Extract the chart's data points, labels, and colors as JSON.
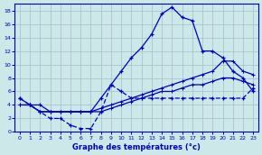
{
  "xlabel": "Graphe des températures (°c)",
  "background_color": "#cce8e8",
  "grid_color": "#aabbcc",
  "line_color": "#0000bb",
  "xlim": [
    -0.5,
    23.5
  ],
  "ylim": [
    0,
    19
  ],
  "xticks": [
    0,
    1,
    2,
    3,
    4,
    5,
    6,
    7,
    8,
    9,
    10,
    11,
    12,
    13,
    14,
    15,
    16,
    17,
    18,
    19,
    20,
    21,
    22,
    23
  ],
  "yticks": [
    0,
    2,
    4,
    6,
    8,
    10,
    12,
    14,
    16,
    18
  ],
  "line1_x": [
    0,
    1,
    2,
    3,
    4,
    5,
    6,
    7,
    8,
    9,
    10,
    11,
    12,
    13,
    14,
    15,
    16,
    17,
    18,
    19,
    20,
    21,
    22,
    23
  ],
  "line1_y": [
    5,
    4,
    4,
    3,
    3,
    3,
    3,
    3,
    5,
    7,
    9,
    11,
    12.5,
    14.5,
    17.5,
    18.5,
    17,
    16.5,
    12,
    12,
    11,
    9,
    8,
    6
  ],
  "line2_x": [
    0,
    1,
    2,
    3,
    4,
    5,
    6,
    7,
    8,
    9,
    10,
    11,
    12,
    13,
    14,
    15,
    16,
    17,
    18,
    19,
    20,
    21,
    22,
    23
  ],
  "line2_y": [
    5,
    4,
    3,
    2,
    2,
    1,
    0.5,
    0.5,
    3,
    7,
    6,
    5,
    5,
    5,
    5,
    5,
    5,
    5,
    5,
    5,
    5,
    5,
    5,
    6.5
  ],
  "line3_x": [
    0,
    1,
    2,
    3,
    4,
    5,
    6,
    7,
    8,
    9,
    10,
    11,
    12,
    13,
    14,
    15,
    16,
    17,
    18,
    19,
    20,
    21,
    22,
    23
  ],
  "line3_y": [
    4,
    4,
    3,
    3,
    3,
    3,
    3,
    3,
    3.5,
    4,
    4.5,
    5,
    5.5,
    6,
    6.5,
    7,
    7.5,
    8,
    8.5,
    9,
    10.5,
    10.5,
    9,
    8.5
  ],
  "line4_x": [
    0,
    1,
    2,
    3,
    4,
    5,
    6,
    7,
    8,
    9,
    10,
    11,
    12,
    13,
    14,
    15,
    16,
    17,
    18,
    19,
    20,
    21,
    22,
    23
  ],
  "line4_y": [
    4,
    4,
    3,
    3,
    3,
    3,
    3,
    3,
    3,
    3.5,
    4,
    4.5,
    5,
    5.5,
    6,
    6,
    6.5,
    7,
    7,
    7.5,
    8,
    8,
    7.5,
    7
  ]
}
